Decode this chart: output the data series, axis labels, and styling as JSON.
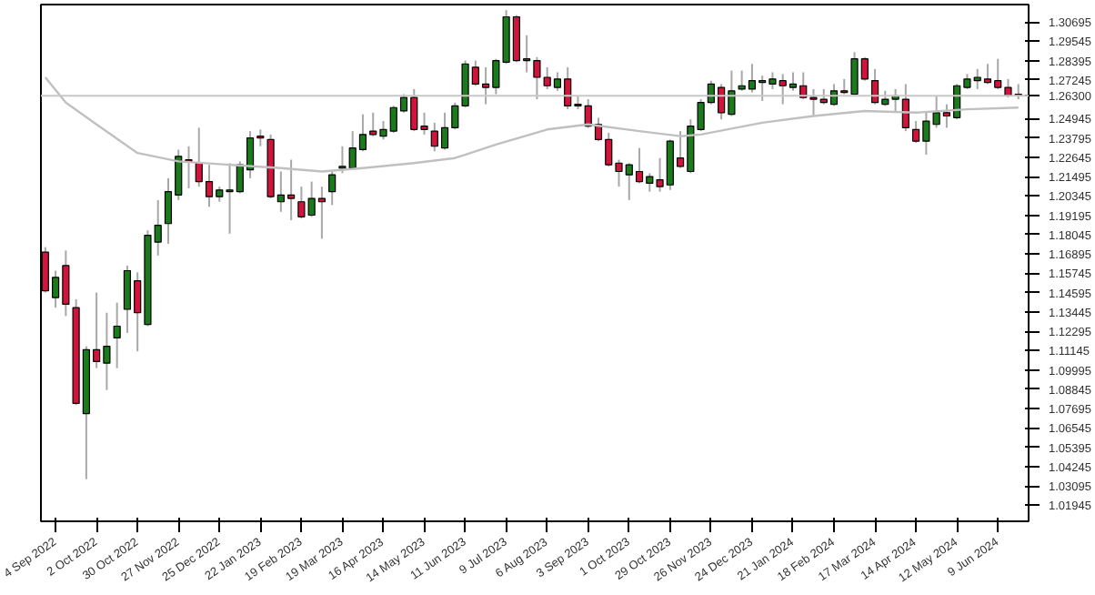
{
  "chart_data": {
    "type": "candlestick",
    "grid": false,
    "xlim": [
      "2022-08-25",
      "2024-06-30"
    ],
    "xticks": [
      {
        "value": "2022-09-04",
        "label": "4 Sep 2022"
      },
      {
        "value": "2022-10-02",
        "label": "2 Oct 2022"
      },
      {
        "value": "2022-10-30",
        "label": "30 Oct 2022"
      },
      {
        "value": "2022-11-27",
        "label": "27 Nov 2022"
      },
      {
        "value": "2022-12-25",
        "label": "25 Dec 2022"
      },
      {
        "value": "2023-01-22",
        "label": "22 Jan 2023"
      },
      {
        "value": "2023-02-19",
        "label": "19 Feb 2023"
      },
      {
        "value": "2023-03-19",
        "label": "19 Mar 2023"
      },
      {
        "value": "2023-04-16",
        "label": "16 Apr 2023"
      },
      {
        "value": "2023-05-14",
        "label": "14 May 2023"
      },
      {
        "value": "2023-06-11",
        "label": "11 Jun 2023"
      },
      {
        "value": "2023-07-09",
        "label": "9 Jul 2023"
      },
      {
        "value": "2023-08-06",
        "label": "6 Aug 2023"
      },
      {
        "value": "2023-09-03",
        "label": "3 Sep 2023"
      },
      {
        "value": "2023-10-01",
        "label": "1 Oct 2023"
      },
      {
        "value": "2023-10-29",
        "label": "29 Oct 2023"
      },
      {
        "value": "2023-11-26",
        "label": "26 Nov 2023"
      },
      {
        "value": "2023-12-24",
        "label": "24 Dec 2023"
      },
      {
        "value": "2024-01-21",
        "label": "21 Jan 2024"
      },
      {
        "value": "2024-02-18",
        "label": "18 Feb 2024"
      },
      {
        "value": "2024-03-17",
        "label": "17 Mar 2024"
      },
      {
        "value": "2024-04-14",
        "label": "14 Apr 2024"
      },
      {
        "value": "2024-05-12",
        "label": "12 May 2024"
      },
      {
        "value": "2024-06-09",
        "label": "9 Jun 2024"
      }
    ],
    "ylim": [
      1.0099,
      1.3173
    ],
    "yticks": [
      1.30695,
      1.29545,
      1.28395,
      1.27245,
      1.24945,
      1.23795,
      1.22645,
      1.21495,
      1.20345,
      1.19195,
      1.18045,
      1.16895,
      1.15745,
      1.14595,
      1.13445,
      1.12295,
      1.11145,
      1.09995,
      1.08845,
      1.07695,
      1.06545,
      1.05395,
      1.04245,
      1.03095,
      1.01945
    ],
    "ref_lines": [
      {
        "axis": "y",
        "value": 1.263,
        "label": "1.26300",
        "color": "#c8c8c8"
      }
    ],
    "series": [
      {
        "x": [
          "2022-08-28",
          "2022-09-04",
          "2022-09-11",
          "2022-09-18",
          "2022-09-25",
          "2022-10-02",
          "2022-10-09",
          "2022-10-16",
          "2022-10-23",
          "2022-10-30",
          "2022-11-06",
          "2022-11-13",
          "2022-11-20",
          "2022-11-27",
          "2022-12-04",
          "2022-12-11",
          "2022-12-18",
          "2022-12-25",
          "2023-01-01",
          "2023-01-08",
          "2023-01-15",
          "2023-01-22",
          "2023-01-29",
          "2023-02-05",
          "2023-02-12",
          "2023-02-19",
          "2023-02-26",
          "2023-03-05",
          "2023-03-12",
          "2023-03-19",
          "2023-03-26",
          "2023-04-02",
          "2023-04-09",
          "2023-04-16",
          "2023-04-23",
          "2023-04-30",
          "2023-05-07",
          "2023-05-14",
          "2023-05-21",
          "2023-05-28",
          "2023-06-04",
          "2023-06-11",
          "2023-06-18",
          "2023-06-25",
          "2023-07-02",
          "2023-07-09",
          "2023-07-16",
          "2023-07-23",
          "2023-07-30",
          "2023-08-06",
          "2023-08-13",
          "2023-08-20",
          "2023-08-27",
          "2023-09-03",
          "2023-09-10",
          "2023-09-17",
          "2023-09-24",
          "2023-10-01",
          "2023-10-08",
          "2023-10-15",
          "2023-10-22",
          "2023-10-29",
          "2023-11-05",
          "2023-11-12",
          "2023-11-19",
          "2023-11-26",
          "2023-12-03",
          "2023-12-10",
          "2023-12-17",
          "2023-12-24",
          "2023-12-31",
          "2024-01-07",
          "2024-01-14",
          "2024-01-21",
          "2024-01-28",
          "2024-02-04",
          "2024-02-11",
          "2024-02-18",
          "2024-02-25",
          "2024-03-03",
          "2024-03-10",
          "2024-03-17",
          "2024-03-24",
          "2024-03-31",
          "2024-04-07",
          "2024-04-14",
          "2024-04-21",
          "2024-04-28",
          "2024-05-05",
          "2024-05-12",
          "2024-05-19",
          "2024-05-26",
          "2024-06-02",
          "2024-06-09",
          "2024-06-16",
          "2024-06-23"
        ],
        "ohlc": [
          [
            1.17,
            1.173,
            1.146,
            1.147
          ],
          [
            1.143,
            1.159,
            1.137,
            1.155
          ],
          [
            1.162,
            1.171,
            1.132,
            1.139
          ],
          [
            1.137,
            1.142,
            1.079,
            1.08
          ],
          [
            1.074,
            1.114,
            1.035,
            1.112
          ],
          [
            1.112,
            1.146,
            1.101,
            1.105
          ],
          [
            1.104,
            1.134,
            1.088,
            1.114
          ],
          [
            1.119,
            1.14,
            1.101,
            1.126
          ],
          [
            1.136,
            1.162,
            1.122,
            1.159
          ],
          [
            1.153,
            1.158,
            1.111,
            1.134
          ],
          [
            1.127,
            1.183,
            1.126,
            1.18
          ],
          [
            1.176,
            1.201,
            1.168,
            1.186
          ],
          [
            1.187,
            1.214,
            1.175,
            1.206
          ],
          [
            1.204,
            1.231,
            1.201,
            1.227
          ],
          [
            1.225,
            1.233,
            1.208,
            1.224
          ],
          [
            1.223,
            1.244,
            1.209,
            1.212
          ],
          [
            1.212,
            1.222,
            1.197,
            1.203
          ],
          [
            1.203,
            1.209,
            1.2,
            1.207
          ],
          [
            1.206,
            1.223,
            1.181,
            1.207
          ],
          [
            1.206,
            1.224,
            1.205,
            1.222
          ],
          [
            1.219,
            1.242,
            1.214,
            1.238
          ],
          [
            1.239,
            1.243,
            1.233,
            1.238
          ],
          [
            1.237,
            1.24,
            1.202,
            1.203
          ],
          [
            1.2,
            1.218,
            1.194,
            1.204
          ],
          [
            1.204,
            1.225,
            1.189,
            1.202
          ],
          [
            1.2,
            1.209,
            1.19,
            1.191
          ],
          [
            1.192,
            1.212,
            1.191,
            1.202
          ],
          [
            1.202,
            1.209,
            1.178,
            1.2
          ],
          [
            1.206,
            1.218,
            1.198,
            1.216
          ],
          [
            1.22,
            1.233,
            1.217,
            1.221
          ],
          [
            1.22,
            1.242,
            1.219,
            1.232
          ],
          [
            1.231,
            1.252,
            1.23,
            1.24
          ],
          [
            1.242,
            1.253,
            1.239,
            1.24
          ],
          [
            1.239,
            1.248,
            1.237,
            1.243
          ],
          [
            1.242,
            1.257,
            1.241,
            1.256
          ],
          [
            1.254,
            1.264,
            1.253,
            1.262
          ],
          [
            1.262,
            1.267,
            1.242,
            1.243
          ],
          [
            1.245,
            1.253,
            1.24,
            1.243
          ],
          [
            1.242,
            1.247,
            1.23,
            1.233
          ],
          [
            1.232,
            1.253,
            1.231,
            1.244
          ],
          [
            1.244,
            1.259,
            1.243,
            1.257
          ],
          [
            1.257,
            1.284,
            1.256,
            1.282
          ],
          [
            1.28,
            1.284,
            1.269,
            1.27
          ],
          [
            1.27,
            1.28,
            1.258,
            1.268
          ],
          [
            1.268,
            1.285,
            1.264,
            1.284
          ],
          [
            1.283,
            1.314,
            1.282,
            1.31
          ],
          [
            1.31,
            1.311,
            1.283,
            1.284
          ],
          [
            1.285,
            1.299,
            1.277,
            1.284
          ],
          [
            1.284,
            1.286,
            1.261,
            1.274
          ],
          [
            1.274,
            1.28,
            1.267,
            1.269
          ],
          [
            1.268,
            1.277,
            1.266,
            1.273
          ],
          [
            1.273,
            1.28,
            1.255,
            1.257
          ],
          [
            1.258,
            1.263,
            1.255,
            1.257
          ],
          [
            1.257,
            1.261,
            1.244,
            1.245
          ],
          [
            1.246,
            1.25,
            1.236,
            1.237
          ],
          [
            1.237,
            1.241,
            1.221,
            1.222
          ],
          [
            1.223,
            1.225,
            1.209,
            1.218
          ],
          [
            1.216,
            1.223,
            1.201,
            1.222
          ],
          [
            1.218,
            1.232,
            1.211,
            1.212
          ],
          [
            1.211,
            1.217,
            1.206,
            1.215
          ],
          [
            1.213,
            1.226,
            1.206,
            1.209
          ],
          [
            1.21,
            1.237,
            1.207,
            1.236
          ],
          [
            1.226,
            1.242,
            1.22,
            1.221
          ],
          [
            1.218,
            1.249,
            1.217,
            1.245
          ],
          [
            1.243,
            1.261,
            1.242,
            1.259
          ],
          [
            1.259,
            1.272,
            1.258,
            1.27
          ],
          [
            1.268,
            1.27,
            1.249,
            1.253
          ],
          [
            1.252,
            1.278,
            1.251,
            1.266
          ],
          [
            1.267,
            1.278,
            1.266,
            1.269
          ],
          [
            1.267,
            1.282,
            1.265,
            1.272
          ],
          [
            1.271,
            1.275,
            1.26,
            1.272
          ],
          [
            1.27,
            1.277,
            1.267,
            1.273
          ],
          [
            1.272,
            1.276,
            1.258,
            1.269
          ],
          [
            1.268,
            1.277,
            1.266,
            1.27
          ],
          [
            1.269,
            1.277,
            1.261,
            1.262
          ],
          [
            1.262,
            1.267,
            1.251,
            1.261
          ],
          [
            1.261,
            1.267,
            1.258,
            1.259
          ],
          [
            1.258,
            1.27,
            1.257,
            1.266
          ],
          [
            1.266,
            1.273,
            1.264,
            1.265
          ],
          [
            1.264,
            1.289,
            1.263,
            1.285
          ],
          [
            1.285,
            1.286,
            1.272,
            1.273
          ],
          [
            1.272,
            1.279,
            1.258,
            1.259
          ],
          [
            1.258,
            1.266,
            1.257,
            1.261
          ],
          [
            1.261,
            1.267,
            1.253,
            1.263
          ],
          [
            1.261,
            1.27,
            1.242,
            1.244
          ],
          [
            1.243,
            1.248,
            1.235,
            1.236
          ],
          [
            1.236,
            1.253,
            1.228,
            1.248
          ],
          [
            1.246,
            1.263,
            1.244,
            1.253
          ],
          [
            1.253,
            1.258,
            1.244,
            1.251
          ],
          [
            1.25,
            1.27,
            1.249,
            1.269
          ],
          [
            1.268,
            1.276,
            1.267,
            1.273
          ],
          [
            1.272,
            1.279,
            1.267,
            1.274
          ],
          [
            1.273,
            1.282,
            1.27,
            1.271
          ],
          [
            1.272,
            1.285,
            1.267,
            1.268
          ],
          [
            1.268,
            1.273,
            1.262,
            1.263
          ],
          [
            1.264,
            1.27,
            1.261,
            1.263
          ]
        ],
        "colors": [
          "#d2143c",
          "#1b7a1b",
          "#d2143c",
          "#d2143c",
          "#1b7a1b",
          "#d2143c",
          "#1b7a1b",
          "#1b7a1b",
          "#1b7a1b",
          "#d2143c",
          "#1b7a1b",
          "#1b7a1b",
          "#1b7a1b",
          "#1b7a1b",
          "#d2143c",
          "#d2143c",
          "#d2143c",
          "#1b7a1b",
          "#1b7a1b",
          "#1b7a1b",
          "#1b7a1b",
          "#d2143c",
          "#d2143c",
          "#1b7a1b",
          "#d2143c",
          "#d2143c",
          "#1b7a1b",
          "#d2143c",
          "#1b7a1b",
          "#1b7a1b",
          "#1b7a1b",
          "#1b7a1b",
          "#d2143c",
          "#1b7a1b",
          "#1b7a1b",
          "#1b7a1b",
          "#d2143c",
          "#d2143c",
          "#d2143c",
          "#1b7a1b",
          "#1b7a1b",
          "#1b7a1b",
          "#d2143c",
          "#d2143c",
          "#1b7a1b",
          "#1b7a1b",
          "#d2143c",
          "#d2143c",
          "#d2143c",
          "#d2143c",
          "#1b7a1b",
          "#d2143c",
          "#d2143c",
          "#d2143c",
          "#d2143c",
          "#d2143c",
          "#d2143c",
          "#1b7a1b",
          "#d2143c",
          "#1b7a1b",
          "#d2143c",
          "#1b7a1b",
          "#d2143c",
          "#1b7a1b",
          "#1b7a1b",
          "#1b7a1b",
          "#d2143c",
          "#1b7a1b",
          "#1b7a1b",
          "#1b7a1b",
          "#1b7a1b",
          "#1b7a1b",
          "#d2143c",
          "#1b7a1b",
          "#d2143c",
          "#d2143c",
          "#d2143c",
          "#1b7a1b",
          "#d2143c",
          "#1b7a1b",
          "#d2143c",
          "#d2143c",
          "#1b7a1b",
          "#1b7a1b",
          "#d2143c",
          "#d2143c",
          "#1b7a1b",
          "#1b7a1b",
          "#d2143c",
          "#1b7a1b",
          "#1b7a1b",
          "#1b7a1b",
          "#d2143c",
          "#d2143c",
          "#d2143c",
          "#d2143c"
        ]
      },
      {
        "type": "line",
        "color": "#c0c0c0",
        "x": [
          "2022-08-28",
          "2022-09-11",
          "2022-10-02",
          "2022-10-30",
          "2022-11-27",
          "2023-01-01",
          "2023-02-05",
          "2023-03-05",
          "2023-04-02",
          "2023-05-07",
          "2023-06-04",
          "2023-07-02",
          "2023-08-06",
          "2023-09-03",
          "2023-10-08",
          "2023-11-05",
          "2023-11-19",
          "2023-12-31",
          "2024-02-04",
          "2024-03-10",
          "2024-04-14",
          "2024-05-19",
          "2024-06-23"
        ],
        "values": [
          1.274,
          1.259,
          1.246,
          1.229,
          1.224,
          1.222,
          1.22,
          1.218,
          1.22,
          1.223,
          1.226,
          1.234,
          1.243,
          1.246,
          1.242,
          1.239,
          1.24,
          1.247,
          1.251,
          1.254,
          1.253,
          1.255,
          1.256
        ]
      }
    ]
  }
}
